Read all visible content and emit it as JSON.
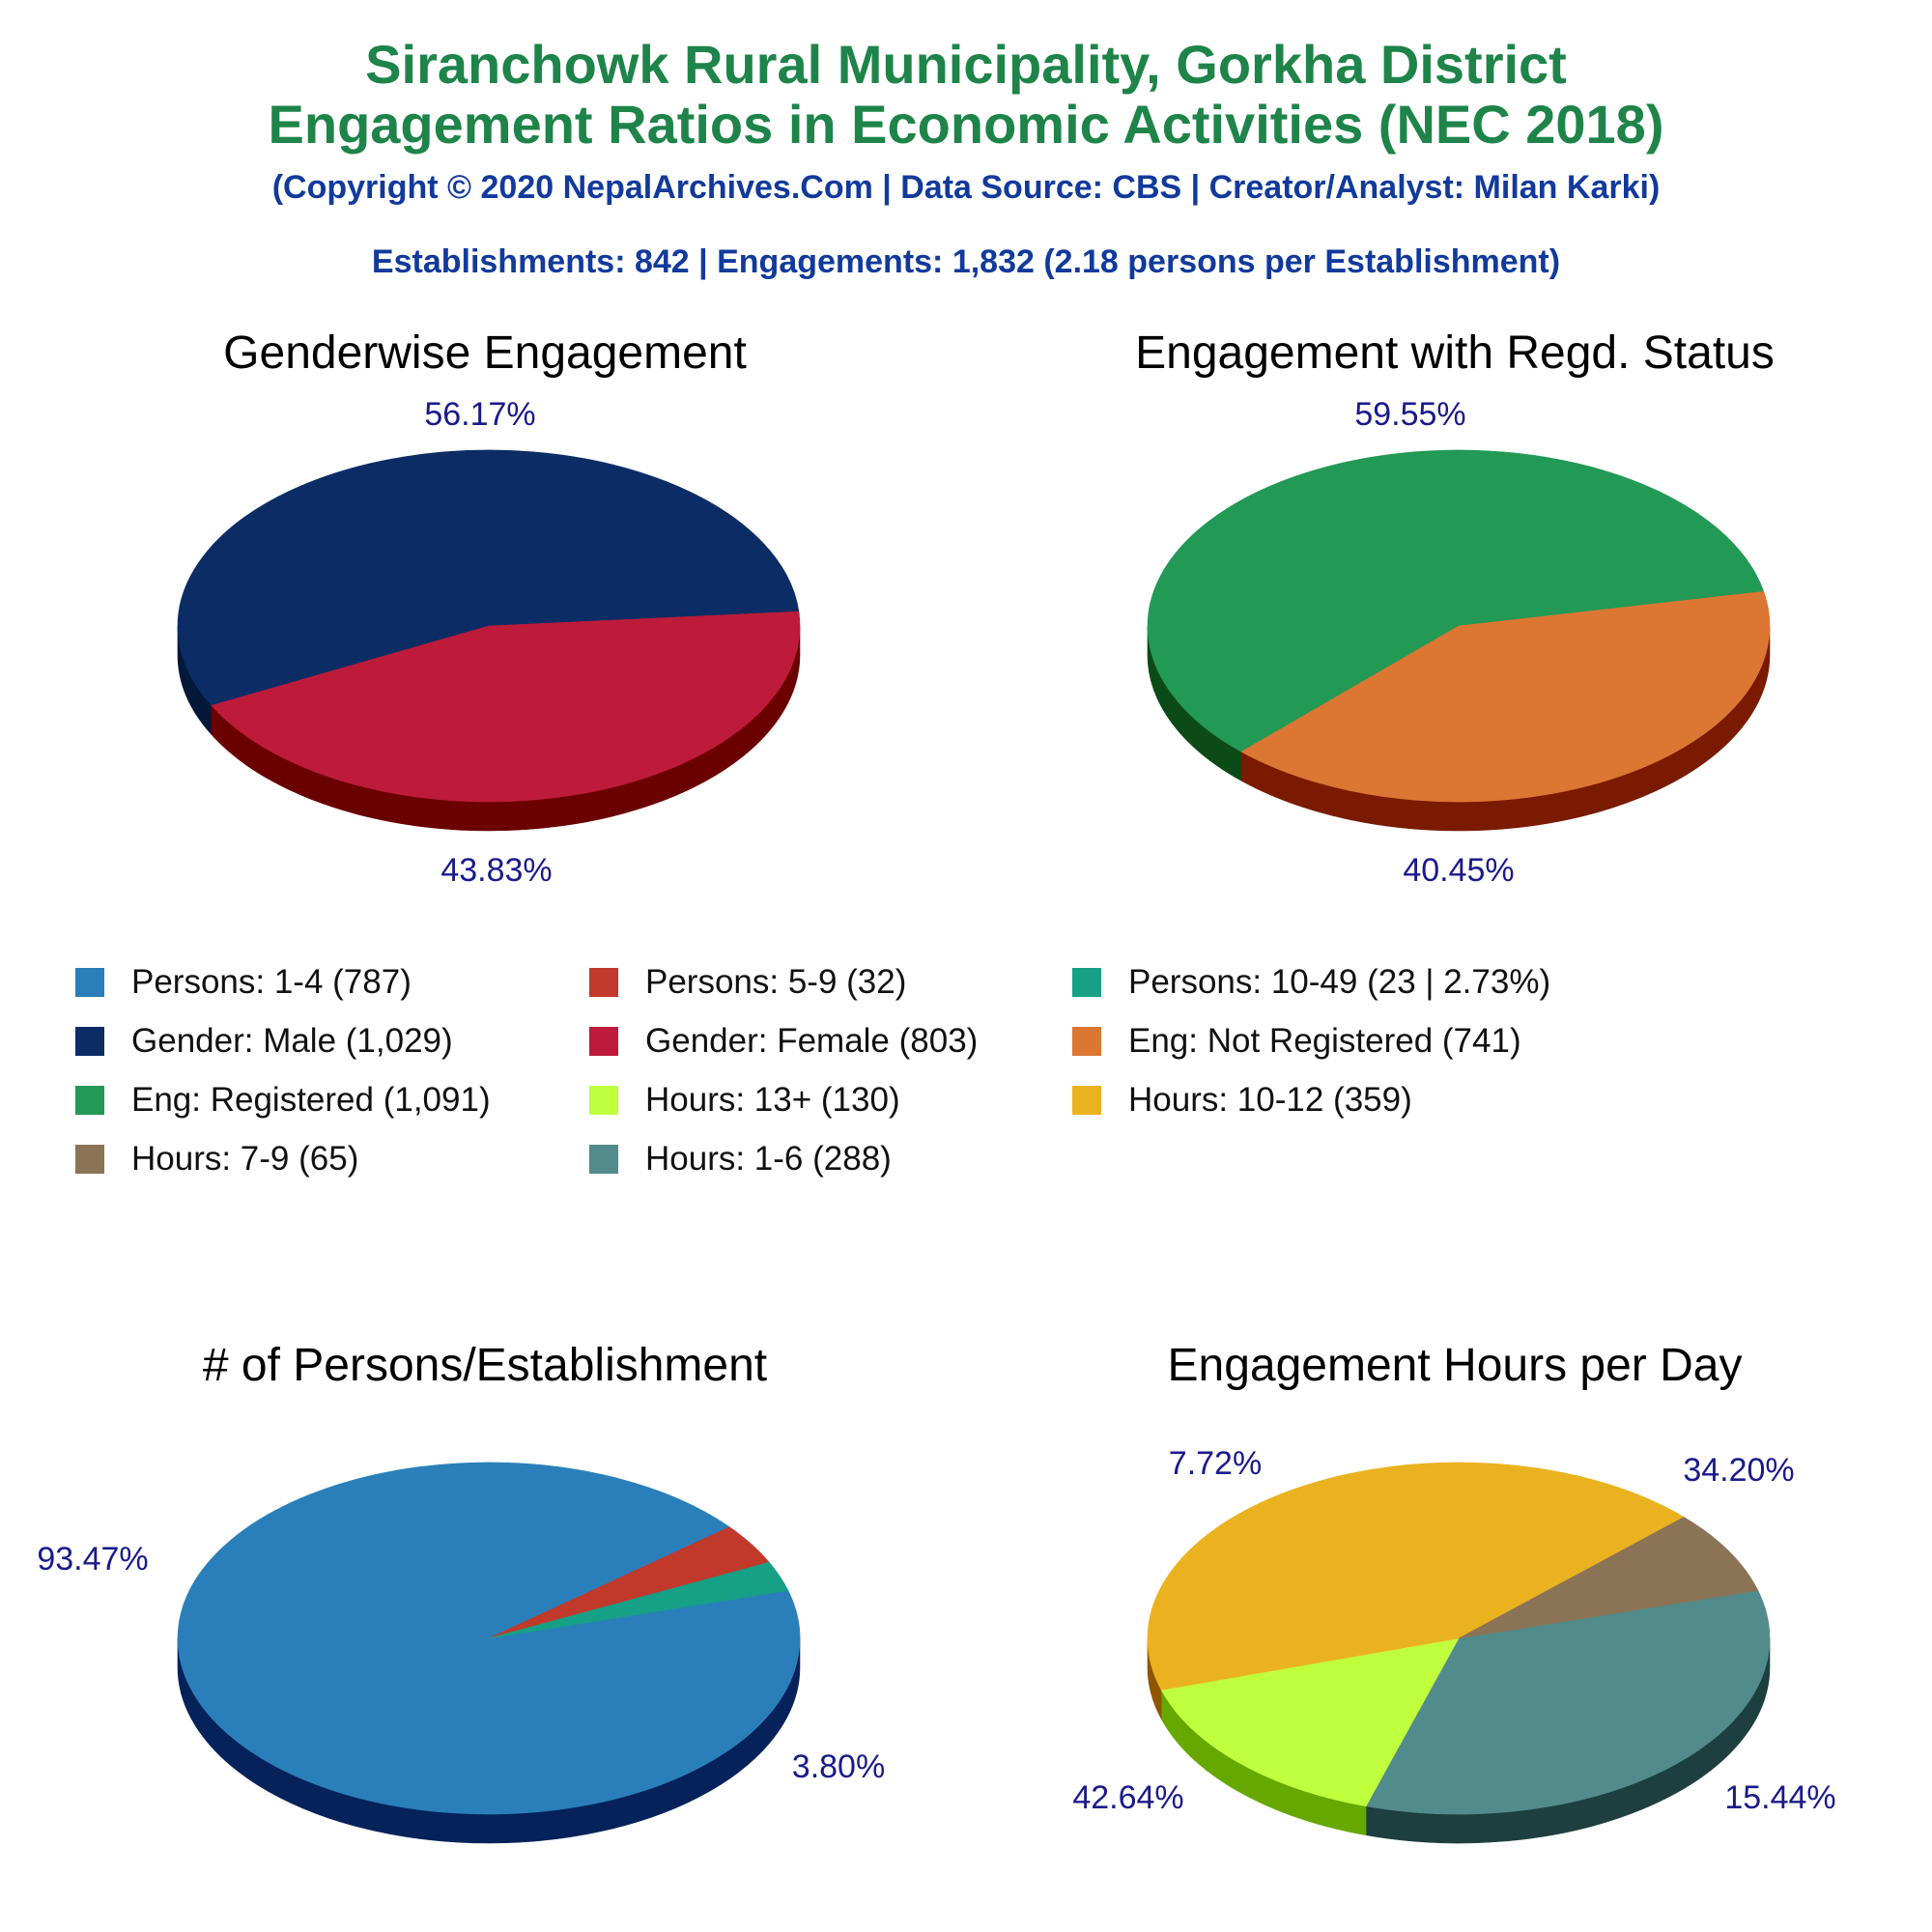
{
  "header": {
    "title_line1": "Siranchowk Rural Municipality, Gorkha District",
    "title_line2": "Engagement Ratios in Economic Activities (NEC 2018)",
    "copyright": "(Copyright © 2020 NepalArchives.Com | Data Source: CBS | Creator/Analyst: Milan Karki)",
    "stats": "Establishments: 842 | Engagements: 1,832 (2.18 persons per Establishment)"
  },
  "legend": [
    {
      "label": "Persons: 1-4 (787)",
      "color": "#2a7fba"
    },
    {
      "label": "Persons: 5-9 (32)",
      "color": "#c0392b"
    },
    {
      "label": "Persons: 10-49 (23 | 2.73%)",
      "color": "#16a085"
    },
    {
      "label": "Gender: Male (1,029)",
      "color": "#0b2c65"
    },
    {
      "label": "Gender: Female (803)",
      "color": "#be1b3b"
    },
    {
      "label": "Eng: Not Registered (741)",
      "color": "#dc7633"
    },
    {
      "label": "Eng: Registered (1,091)",
      "color": "#229955"
    },
    {
      "label": "Hours: 13+ (130)",
      "color": "#c0ff3e"
    },
    {
      "label": "Hours: 10-12 (359)",
      "color": "#ebb220"
    },
    {
      "label": "Hours: 7-9 (65)",
      "color": "#8b7355"
    },
    {
      "label": "Hours: 1-6 (288)",
      "color": "#528b8b"
    }
  ],
  "chart_data": [
    {
      "type": "pie",
      "title": "Genderwise Engagement",
      "slices": [
        {
          "name": "Gender: Male",
          "value": 1029,
          "percent": "56.17%",
          "color": "#0b2c65",
          "side": "#04183a"
        },
        {
          "name": "Gender: Female",
          "value": 803,
          "percent": "43.83%",
          "color": "#be1b3b",
          "side": "#6b0000"
        }
      ]
    },
    {
      "type": "pie",
      "title": "Engagement with Regd. Status",
      "slices": [
        {
          "name": "Eng: Registered",
          "value": 1091,
          "percent": "59.55%",
          "color": "#229955",
          "side": "#0c4a18"
        },
        {
          "name": "Eng: Not Registered",
          "value": 741,
          "percent": "40.45%",
          "color": "#dc7633",
          "side": "#7a1a00"
        }
      ]
    },
    {
      "type": "pie",
      "title": "# of Persons/Establishment",
      "slices": [
        {
          "name": "Persons: 1-4",
          "value": 787,
          "percent": "93.47%",
          "color": "#2a7fba",
          "side": "#05225a"
        },
        {
          "name": "Persons: 5-9",
          "value": 32,
          "percent": "3.80%",
          "color": "#c0392b",
          "side": "#6b0000"
        },
        {
          "name": "Persons: 10-49",
          "value": 23,
          "percent": "",
          "color": "#16a085",
          "side": "#044a3a"
        }
      ]
    },
    {
      "type": "pie",
      "title": "Engagement Hours per Day",
      "slices": [
        {
          "name": "Hours: 1-6",
          "value": 288,
          "percent": "34.20%",
          "color": "#528b8b",
          "side": "#1e3f3f"
        },
        {
          "name": "Hours: 13+",
          "value": 130,
          "percent": "15.44%",
          "color": "#c0ff3e",
          "side": "#66a800"
        },
        {
          "name": "Hours: 10-12",
          "value": 359,
          "percent": "42.64%",
          "color": "#ebb220",
          "side": "#8f5600"
        },
        {
          "name": "Hours: 7-9",
          "value": 65,
          "percent": "7.72%",
          "color": "#8b7355",
          "side": "#4a3520"
        }
      ]
    }
  ]
}
